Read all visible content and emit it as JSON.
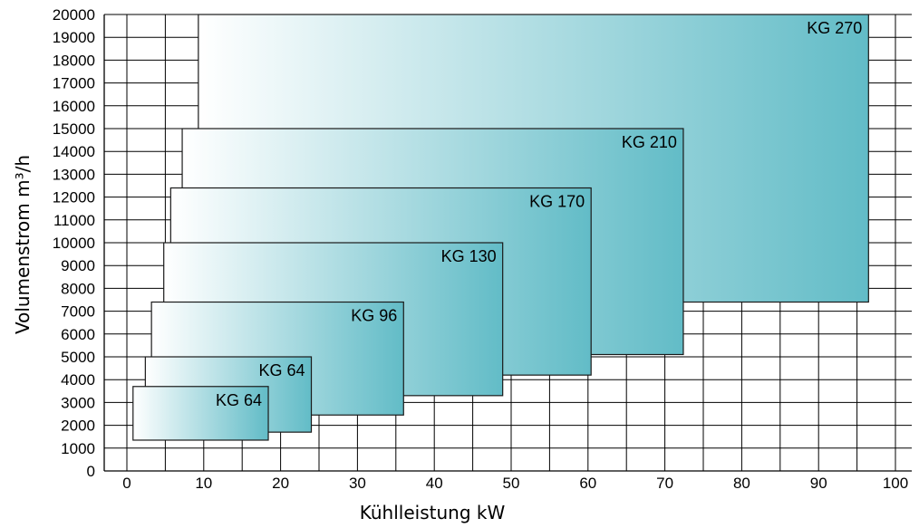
{
  "chart_data": {
    "type": "range-box",
    "xlabel": "Kühlleistung kW",
    "ylabel": "Volumenstrom m³/h",
    "xlim": [
      0,
      100
    ],
    "ylim": [
      0,
      20000
    ],
    "x_ticks": [
      0,
      10,
      20,
      30,
      40,
      50,
      60,
      70,
      80,
      90,
      100
    ],
    "y_ticks": [
      0,
      1000,
      2000,
      3000,
      4000,
      5000,
      6000,
      7000,
      8000,
      9000,
      10000,
      11000,
      12000,
      13000,
      14000,
      15000,
      16000,
      17000,
      18000,
      19000,
      20000
    ],
    "grid": true,
    "gradient_colors": [
      "#ffffff",
      "#62bcc7"
    ],
    "series": [
      {
        "name": "KG 270",
        "x": [
          9.3,
          96.5
        ],
        "y": [
          7400,
          20000
        ]
      },
      {
        "name": "KG 210",
        "x": [
          7.2,
          72.4
        ],
        "y": [
          5100,
          15000
        ]
      },
      {
        "name": "KG 170",
        "x": [
          5.7,
          60.4
        ],
        "y": [
          4200,
          12400
        ]
      },
      {
        "name": "KG 130",
        "x": [
          4.8,
          48.9
        ],
        "y": [
          3300,
          10000
        ]
      },
      {
        "name": "KG 96",
        "x": [
          3.2,
          36.0
        ],
        "y": [
          2450,
          7400
        ]
      },
      {
        "name": "KG 64",
        "x": [
          2.4,
          24.0
        ],
        "y": [
          1700,
          5000
        ]
      },
      {
        "name": "KG 64",
        "x": [
          0.8,
          18.4
        ],
        "y": [
          1350,
          3700
        ]
      }
    ]
  }
}
